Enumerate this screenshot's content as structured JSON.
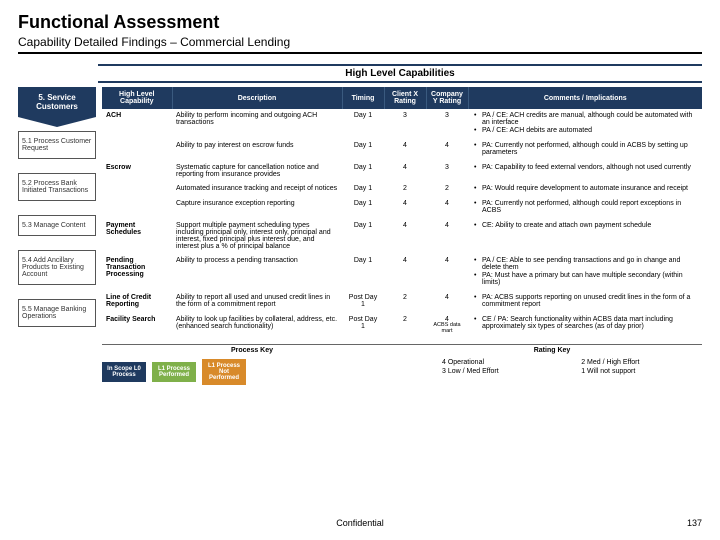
{
  "header": {
    "title": "Functional Assessment",
    "subtitle": "Capability Detailed Findings – Commercial Lending"
  },
  "section_header": "High Level Capabilities",
  "flag": {
    "num": "5.",
    "text": "Service Customers"
  },
  "steps": [
    "5.1 Process Customer Request",
    "5.2 Process Bank Initiated Transactions",
    "5.3 Manage Content",
    "5.4 Add Ancillary Products to Existing Account",
    "5.5 Manage Banking Operations"
  ],
  "columns": {
    "cap": "High Level Capability",
    "desc": "Description",
    "timing": "Timing",
    "rx": "Client X Rating",
    "ry": "Company Y Rating",
    "comments": "Comments / Implications"
  },
  "rows": [
    {
      "cap": "ACH",
      "desc": "Ability to perform incoming and outgoing ACH transactions",
      "timing": "Day 1",
      "rx": "3",
      "ry": "3",
      "comments": [
        "PA / CE: ACH credits are manual, although could be automated with an interface",
        "PA / CE: ACH debits are automated"
      ]
    },
    {
      "cap": "",
      "desc": "Ability to pay interest on escrow funds",
      "timing": "Day 1",
      "rx": "4",
      "ry": "4",
      "comments": [
        "PA: Currently not performed, although could in ACBS by setting up parameters"
      ]
    },
    {
      "cap": "Escrow",
      "desc": "Systematic capture for cancellation notice and reporting from insurance provides",
      "timing": "Day 1",
      "rx": "4",
      "ry": "3",
      "comments": [
        "PA: Capability to feed external vendors, although not used currently"
      ]
    },
    {
      "cap": "",
      "desc": "Automated insurance tracking and receipt of notices",
      "timing": "Day 1",
      "rx": "2",
      "ry": "2",
      "comments": [
        "PA: Would require development to automate insurance and receipt"
      ]
    },
    {
      "cap": "",
      "desc": "Capture insurance exception reporting",
      "timing": "Day 1",
      "rx": "4",
      "ry": "4",
      "comments": [
        "PA: Currently not performed, although could report exceptions in ACBS"
      ]
    },
    {
      "cap": "Payment Schedules",
      "desc": "Support multiple payment scheduling types including principal only, interest only, principal and interest, fixed principal plus interest due, and interest plus a % of principal balance",
      "timing": "Day 1",
      "rx": "4",
      "ry": "4",
      "comments": [
        "CE: Ability to create and attach own payment schedule"
      ]
    },
    {
      "cap": "Pending Transaction Processing",
      "desc": "Ability to process a pending transaction",
      "timing": "Day 1",
      "rx": "4",
      "ry": "4",
      "comments": [
        "PA / CE: Able to see pending transactions and go in change and delete them",
        "PA: Must have a primary but can have multiple secondary (within limits)"
      ]
    },
    {
      "cap": "Line of Credit Reporting",
      "desc": "Ability to report all used and unused credit lines in the form of a commitment report",
      "timing": "Post Day 1",
      "rx": "2",
      "ry": "4",
      "comments": [
        "PA: ACBS supports reporting on unused credit lines in the form of a commitment report"
      ]
    },
    {
      "cap": "Facility Search",
      "desc": "Ability to look up facilities by collateral, address, etc. (enhanced search functionality)",
      "timing": "Post Day 1",
      "rx": "2",
      "ry": "4",
      "ry_sub": "ACBS data mart",
      "comments": [
        "CE / PA: Search functionality within ACBS data mart including approximately six types of searches (as of day prior)"
      ]
    }
  ],
  "keys": {
    "process_title": "Process Key",
    "rating_title": "Rating Key",
    "in_scope": "In Scope L0 Process",
    "performed": "L1 Process Performed",
    "not_performed": "L1 Process Not Performed",
    "ratings": [
      {
        "n": "4",
        "t": "Operational"
      },
      {
        "n": "2",
        "t": "Med / High Effort"
      },
      {
        "n": "3",
        "t": "Low / Med Effort"
      },
      {
        "n": "1",
        "t": "Will not support"
      }
    ]
  },
  "footer": {
    "confidential": "Confidential",
    "page": "137"
  }
}
